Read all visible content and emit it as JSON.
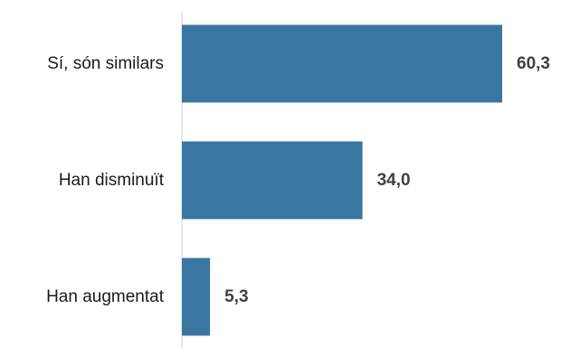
{
  "chart_data": {
    "type": "bar",
    "orientation": "horizontal",
    "categories": [
      "Sí, són similars",
      "Han disminuït",
      "Han augmentat"
    ],
    "values": [
      60.3,
      34.0,
      5.3
    ],
    "value_labels": [
      "60,3",
      "34,0",
      "5,3"
    ],
    "xlim": [
      0,
      60.3
    ],
    "grid": false,
    "legend": "none",
    "colors": {
      "bar": "#3a76a2",
      "axis": "#d0d0d0"
    }
  }
}
